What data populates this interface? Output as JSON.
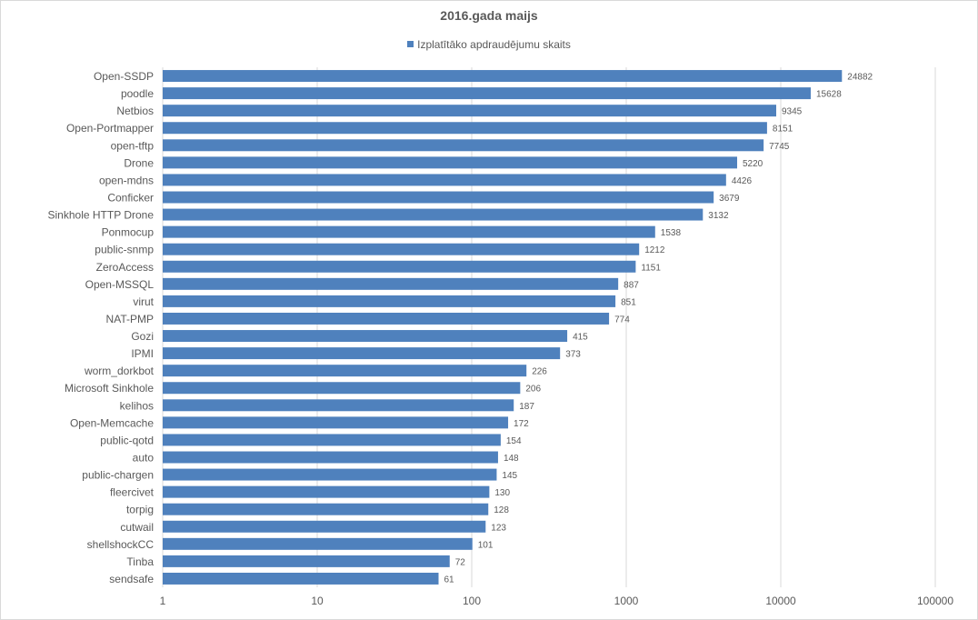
{
  "chart_data": {
    "type": "bar",
    "orientation": "horizontal",
    "title": "2016.gada maijs",
    "xlabel": "",
    "ylabel": "",
    "x_scale": "log",
    "xlim": [
      1,
      100000
    ],
    "x_ticks": [
      1,
      10,
      100,
      1000,
      10000,
      100000
    ],
    "x_tick_labels": [
      "1",
      "10",
      "100",
      "1000",
      "10000",
      "100000"
    ],
    "grid": "vertical",
    "legend_position": "top",
    "categories": [
      "Open-SSDP",
      "poodle",
      "Netbios",
      "Open-Portmapper",
      "open-tftp",
      "Drone",
      "open-mdns",
      "Conficker",
      "Sinkhole HTTP Drone",
      "Ponmocup",
      "public-snmp",
      "ZeroAccess",
      "Open-MSSQL",
      "virut",
      "NAT-PMP",
      "Gozi",
      "IPMI",
      "worm_dorkbot",
      "Microsoft Sinkhole",
      "kelihos",
      "Open-Memcache",
      "public-qotd",
      "auto",
      "public-chargen",
      "fleercivet",
      "torpig",
      "cutwail",
      "shellshockCC",
      "Tinba",
      "sendsafe"
    ],
    "series": [
      {
        "name": "Izplatītāko apdraudējumu skaits",
        "color": "#4f81bd",
        "values": [
          24882,
          15628,
          9345,
          8151,
          7745,
          5220,
          4426,
          3679,
          3132,
          1538,
          1212,
          1151,
          887,
          851,
          774,
          415,
          373,
          226,
          206,
          187,
          172,
          154,
          148,
          145,
          130,
          128,
          123,
          101,
          72,
          61
        ]
      }
    ],
    "data_labels": true
  }
}
